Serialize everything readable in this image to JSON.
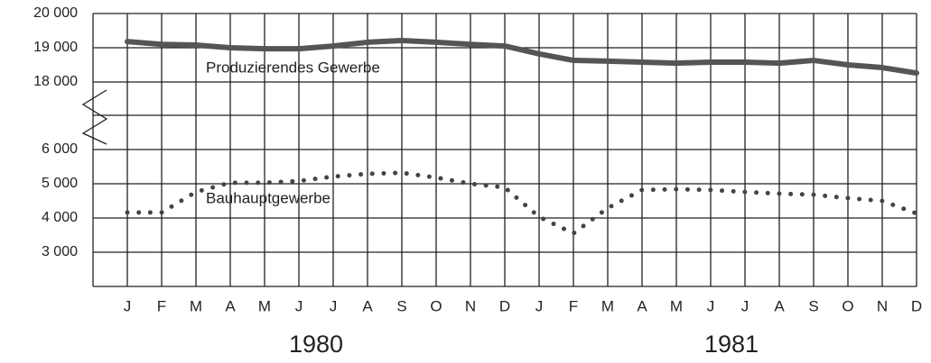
{
  "chart_data": {
    "type": "line",
    "categories": [
      "J",
      "F",
      "M",
      "A",
      "M",
      "J",
      "J",
      "A",
      "S",
      "O",
      "N",
      "D",
      "J",
      "F",
      "M",
      "A",
      "M",
      "J",
      "J",
      "A",
      "S",
      "O",
      "N",
      "D"
    ],
    "years": [
      "1980",
      "1981"
    ],
    "ylim": [
      2000,
      6000
    ],
    "yticks": [
      {
        "value": 3000,
        "label": "3 000"
      },
      {
        "value": 4000,
        "label": "4 000"
      },
      {
        "value": 5000,
        "label": "5 000"
      },
      {
        "value": 6000,
        "label": "6 000"
      }
    ],
    "y2lim": [
      18000,
      20000
    ],
    "y2ticks": [
      {
        "value": 18000,
        "label": "18 000"
      },
      {
        "value": 19000,
        "label": "19 000"
      },
      {
        "value": 20000,
        "label": "20 000"
      }
    ],
    "grid": true,
    "series": [
      {
        "name": "Produzierendes Gewerbe",
        "color": "#555555",
        "style": "solid",
        "axis": "y2",
        "values": [
          19180,
          19100,
          19080,
          19000,
          18970,
          18970,
          19050,
          19160,
          19210,
          19160,
          19100,
          19050,
          18820,
          18630,
          18610,
          18580,
          18550,
          18580,
          18580,
          18550,
          18630,
          18500,
          18420,
          18260
        ]
      },
      {
        "name": "Bauhauptgewerbe",
        "color": "#444444",
        "style": "dotted",
        "values": [
          4160,
          4160,
          4760,
          5030,
          5030,
          5080,
          5210,
          5290,
          5320,
          5180,
          5000,
          4890,
          4030,
          3550,
          4290,
          4820,
          4840,
          4820,
          4760,
          4710,
          4680,
          4580,
          4500,
          4130
        ]
      }
    ]
  }
}
